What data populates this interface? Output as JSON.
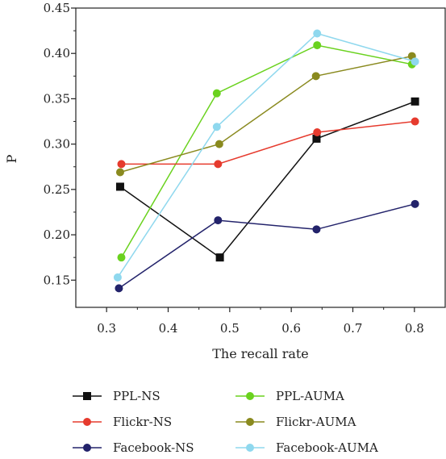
{
  "chart_data": {
    "type": "line",
    "title": "",
    "xlabel": "The recall rate",
    "ylabel": "P",
    "xlim": [
      0.25,
      0.85
    ],
    "ylim": [
      0.12,
      0.45
    ],
    "xticks": [
      "0.3",
      "0.4",
      "0.5",
      "0.6",
      "0.7",
      "0.8"
    ],
    "yticks": [
      "0.15",
      "0.20",
      "0.25",
      "0.30",
      "0.35",
      "0.40",
      "0.45"
    ],
    "grid": false,
    "legend_position": "bottom",
    "series": [
      {
        "name": "PPL-NS",
        "color": "#111111",
        "marker": "square",
        "x": [
          0.322,
          0.484,
          0.641,
          0.801
        ],
        "y": [
          0.253,
          0.175,
          0.306,
          0.347
        ]
      },
      {
        "name": "PPL-AUMA",
        "color": "#6ad21e",
        "marker": "circle",
        "x": [
          0.324,
          0.479,
          0.642,
          0.796
        ],
        "y": [
          0.175,
          0.356,
          0.409,
          0.388
        ]
      },
      {
        "name": "Flickr-NS",
        "color": "#e63b2e",
        "marker": "circle",
        "x": [
          0.324,
          0.481,
          0.642,
          0.801
        ],
        "y": [
          0.278,
          0.278,
          0.313,
          0.325
        ]
      },
      {
        "name": "Flickr-AUMA",
        "color": "#8a8a1f",
        "marker": "circle",
        "x": [
          0.322,
          0.483,
          0.64,
          0.796
        ],
        "y": [
          0.269,
          0.3,
          0.375,
          0.397
        ]
      },
      {
        "name": "Facebook-NS",
        "color": "#23236b",
        "marker": "circle",
        "x": [
          0.32,
          0.481,
          0.641,
          0.801
        ],
        "y": [
          0.141,
          0.216,
          0.206,
          0.234
        ]
      },
      {
        "name": "Facebook-AUMA",
        "color": "#8fd8ee",
        "marker": "circle",
        "x": [
          0.318,
          0.479,
          0.642,
          0.801
        ],
        "y": [
          0.153,
          0.319,
          0.422,
          0.391
        ]
      }
    ]
  }
}
